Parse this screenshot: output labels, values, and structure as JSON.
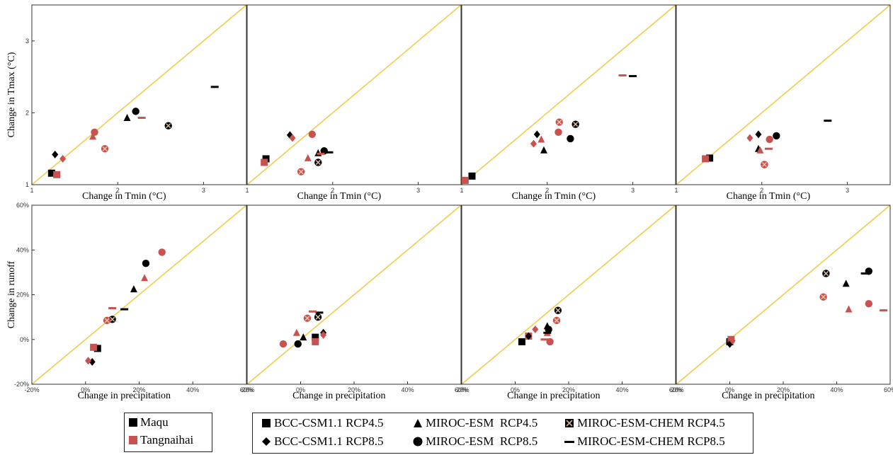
{
  "colors": {
    "maqu": "#000000",
    "tangnaihai": "#c8524f",
    "diagonal": "#f0d060",
    "axis": "#333333"
  },
  "chart_data": [
    {
      "type": "scatter",
      "panel": 1,
      "xlabel": "Change in Tmin (°C)",
      "ylabel": "Change in Tmax (°C)",
      "xlim": [
        1,
        3.5
      ],
      "ylim": [
        1,
        3.5
      ],
      "xticks": [
        "1",
        "2",
        "3"
      ],
      "yticks": [
        "1",
        "2",
        "3"
      ],
      "points": [
        {
          "site": "Maqu",
          "model": "BCC-CSM1.1 RCP4.5",
          "x": 1.23,
          "y": 1.16
        },
        {
          "site": "Tangnaihai",
          "model": "BCC-CSM1.1 RCP4.5",
          "x": 1.29,
          "y": 1.14
        },
        {
          "site": "Maqu",
          "model": "BCC-CSM1.1 RCP8.5",
          "x": 1.27,
          "y": 1.42
        },
        {
          "site": "Tangnaihai",
          "model": "BCC-CSM1.1 RCP8.5",
          "x": 1.36,
          "y": 1.36
        },
        {
          "site": "Maqu",
          "model": "MIROC-ESM RCP4.5",
          "x": 2.11,
          "y": 1.93
        },
        {
          "site": "Tangnaihai",
          "model": "MIROC-ESM RCP4.5",
          "x": 1.71,
          "y": 1.67
        },
        {
          "site": "Maqu",
          "model": "MIROC-ESM RCP8.5",
          "x": 2.21,
          "y": 2.02
        },
        {
          "site": "Tangnaihai",
          "model": "MIROC-ESM RCP8.5",
          "x": 1.73,
          "y": 1.73
        },
        {
          "site": "Maqu",
          "model": "MIROC-ESM-CHEM RCP4.5",
          "x": 2.59,
          "y": 1.82
        },
        {
          "site": "Tangnaihai",
          "model": "MIROC-ESM-CHEM RCP4.5",
          "x": 1.85,
          "y": 1.5
        },
        {
          "site": "Maqu",
          "model": "MIROC-ESM-CHEM RCP8.5",
          "x": 3.13,
          "y": 2.36
        },
        {
          "site": "Tangnaihai",
          "model": "MIROC-ESM-CHEM RCP8.5",
          "x": 2.28,
          "y": 1.93
        }
      ]
    },
    {
      "type": "scatter",
      "panel": 2,
      "xlabel": "Change in Tmin (°C)",
      "ylabel": "",
      "xlim": [
        1,
        3.5
      ],
      "ylim": [
        1,
        3.5
      ],
      "xticks": [
        "1",
        "2",
        "3"
      ],
      "yticks": [],
      "points": [
        {
          "site": "Maqu",
          "model": "BCC-CSM1.1 RCP4.5",
          "x": 1.22,
          "y": 1.36
        },
        {
          "site": "Tangnaihai",
          "model": "BCC-CSM1.1 RCP4.5",
          "x": 1.2,
          "y": 1.31
        },
        {
          "site": "Maqu",
          "model": "BCC-CSM1.1 RCP8.5",
          "x": 1.5,
          "y": 1.69
        },
        {
          "site": "Tangnaihai",
          "model": "BCC-CSM1.1 RCP8.5",
          "x": 1.53,
          "y": 1.65
        },
        {
          "site": "Maqu",
          "model": "MIROC-ESM RCP4.5",
          "x": 1.83,
          "y": 1.44
        },
        {
          "site": "Tangnaihai",
          "model": "MIROC-ESM RCP4.5",
          "x": 1.71,
          "y": 1.37
        },
        {
          "site": "Maqu",
          "model": "MIROC-ESM RCP8.5",
          "x": 1.9,
          "y": 1.47
        },
        {
          "site": "Tangnaihai",
          "model": "MIROC-ESM RCP8.5",
          "x": 1.76,
          "y": 1.7
        },
        {
          "site": "Maqu",
          "model": "MIROC-ESM-CHEM RCP4.5",
          "x": 1.83,
          "y": 1.31
        },
        {
          "site": "Tangnaihai",
          "model": "MIROC-ESM-CHEM RCP4.5",
          "x": 1.63,
          "y": 1.18
        },
        {
          "site": "Maqu",
          "model": "MIROC-ESM-CHEM RCP8.5",
          "x": 1.96,
          "y": 1.45
        },
        {
          "site": "Tangnaihai",
          "model": "MIROC-ESM-CHEM RCP8.5",
          "x": 1.86,
          "y": 1.43
        }
      ]
    },
    {
      "type": "scatter",
      "panel": 3,
      "xlabel": "Change in Tmin (°C)",
      "ylabel": "",
      "xlim": [
        1,
        3.5
      ],
      "ylim": [
        1,
        3.5
      ],
      "xticks": [
        "1",
        "2",
        "3"
      ],
      "yticks": [],
      "points": [
        {
          "site": "Maqu",
          "model": "BCC-CSM1.1 RCP4.5",
          "x": 1.12,
          "y": 1.12
        },
        {
          "site": "Tangnaihai",
          "model": "BCC-CSM1.1 RCP4.5",
          "x": 1.04,
          "y": 1.06
        },
        {
          "site": "Maqu",
          "model": "BCC-CSM1.1 RCP8.5",
          "x": 1.88,
          "y": 1.7
        },
        {
          "site": "Tangnaihai",
          "model": "BCC-CSM1.1 RCP8.5",
          "x": 1.84,
          "y": 1.57
        },
        {
          "site": "Maqu",
          "model": "MIROC-ESM RCP4.5",
          "x": 1.96,
          "y": 1.48
        },
        {
          "site": "Tangnaihai",
          "model": "MIROC-ESM RCP4.5",
          "x": 1.93,
          "y": 1.63
        },
        {
          "site": "Maqu",
          "model": "MIROC-ESM RCP8.5",
          "x": 2.27,
          "y": 1.64
        },
        {
          "site": "Tangnaihai",
          "model": "MIROC-ESM RCP8.5",
          "x": 2.13,
          "y": 1.73
        },
        {
          "site": "Maqu",
          "model": "MIROC-ESM-CHEM RCP4.5",
          "x": 2.33,
          "y": 1.84
        },
        {
          "site": "Tangnaihai",
          "model": "MIROC-ESM-CHEM RCP4.5",
          "x": 2.14,
          "y": 1.87
        },
        {
          "site": "Maqu",
          "model": "MIROC-ESM-CHEM RCP8.5",
          "x": 3,
          "y": 2.51
        },
        {
          "site": "Tangnaihai",
          "model": "MIROC-ESM-CHEM RCP8.5",
          "x": 2.88,
          "y": 2.52
        }
      ]
    },
    {
      "type": "scatter",
      "panel": 4,
      "xlabel": "Change in Tmin (°C)",
      "ylabel": "",
      "xlim": [
        1,
        3.5
      ],
      "ylim": [
        1,
        3.5
      ],
      "xticks": [
        "1",
        "2",
        "3"
      ],
      "yticks": [],
      "points": [
        {
          "site": "Maqu",
          "model": "BCC-CSM1.1 RCP4.5",
          "x": 1.39,
          "y": 1.37
        },
        {
          "site": "Tangnaihai",
          "model": "BCC-CSM1.1 RCP4.5",
          "x": 1.34,
          "y": 1.36
        },
        {
          "site": "Maqu",
          "model": "BCC-CSM1.1 RCP8.5",
          "x": 1.96,
          "y": 1.7
        },
        {
          "site": "Tangnaihai",
          "model": "BCC-CSM1.1 RCP8.5",
          "x": 1.86,
          "y": 1.65
        },
        {
          "site": "Maqu",
          "model": "MIROC-ESM RCP4.5",
          "x": 1.96,
          "y": 1.5
        },
        {
          "site": "Tangnaihai",
          "model": "MIROC-ESM RCP4.5",
          "x": 1.98,
          "y": 1.48
        },
        {
          "site": "Maqu",
          "model": "MIROC-ESM RCP8.5",
          "x": 2.17,
          "y": 1.68
        },
        {
          "site": "Tangnaihai",
          "model": "MIROC-ESM RCP8.5",
          "x": 2.09,
          "y": 1.63
        },
        {
          "site": "Maqu",
          "model": "MIROC-ESM-CHEM RCP4.5",
          "x": 2.03,
          "y": 1.28
        },
        {
          "site": "Tangnaihai",
          "model": "MIROC-ESM-CHEM RCP4.5",
          "x": 2.03,
          "y": 1.28
        },
        {
          "site": "Maqu",
          "model": "MIROC-ESM-CHEM RCP8.5",
          "x": 2.77,
          "y": 1.89
        },
        {
          "site": "Tangnaihai",
          "model": "MIROC-ESM-CHEM RCP8.5",
          "x": 2.08,
          "y": 1.5
        }
      ]
    },
    {
      "type": "scatter",
      "panel": 5,
      "xlabel": "Change in precipitation",
      "ylabel": "Change in runoff",
      "xlim": [
        -20,
        60
      ],
      "ylim": [
        -20,
        60
      ],
      "xticks": [
        "-20%",
        "0%",
        "20%",
        "40%",
        "60%"
      ],
      "yticks": [
        "-20%",
        "0%",
        "20%",
        "40%",
        "60%"
      ],
      "points": [
        {
          "site": "Maqu",
          "model": "BCC-CSM1.1 RCP4.5",
          "x": 4.5,
          "y": -4
        },
        {
          "site": "Tangnaihai",
          "model": "BCC-CSM1.1 RCP4.5",
          "x": 3,
          "y": -3.5
        },
        {
          "site": "Maqu",
          "model": "BCC-CSM1.1 RCP8.5",
          "x": 2.5,
          "y": -10
        },
        {
          "site": "Tangnaihai",
          "model": "BCC-CSM1.1 RCP8.5",
          "x": 1,
          "y": -9.5
        },
        {
          "site": "Maqu",
          "model": "MIROC-ESM RCP4.5",
          "x": 18,
          "y": 22.5
        },
        {
          "site": "Tangnaihai",
          "model": "MIROC-ESM RCP4.5",
          "x": 22,
          "y": 27.5
        },
        {
          "site": "Maqu",
          "model": "MIROC-ESM RCP8.5",
          "x": 22.5,
          "y": 34
        },
        {
          "site": "Tangnaihai",
          "model": "MIROC-ESM RCP8.5",
          "x": 28.5,
          "y": 39
        },
        {
          "site": "Maqu",
          "model": "MIROC-ESM-CHEM RCP4.5",
          "x": 10,
          "y": 9
        },
        {
          "site": "Tangnaihai",
          "model": "MIROC-ESM-CHEM RCP4.5",
          "x": 8,
          "y": 8.5
        },
        {
          "site": "Maqu",
          "model": "MIROC-ESM-CHEM RCP8.5",
          "x": 14.5,
          "y": 13.5
        },
        {
          "site": "Tangnaihai",
          "model": "MIROC-ESM-CHEM RCP8.5",
          "x": 10,
          "y": 14
        }
      ]
    },
    {
      "type": "scatter",
      "panel": 6,
      "xlabel": "Change in precipitation",
      "ylabel": "",
      "xlim": [
        -20,
        60
      ],
      "ylim": [
        -20,
        60
      ],
      "xticks": [
        "-20%",
        "0%",
        "20%",
        "40%",
        "60%"
      ],
      "yticks": [],
      "points": [
        {
          "site": "Maqu",
          "model": "BCC-CSM1.1 RCP4.5",
          "x": 5.5,
          "y": 1
        },
        {
          "site": "Tangnaihai",
          "model": "BCC-CSM1.1 RCP4.5",
          "x": 5.5,
          "y": -1
        },
        {
          "site": "Maqu",
          "model": "BCC-CSM1.1 RCP8.5",
          "x": 8.5,
          "y": 3
        },
        {
          "site": "Tangnaihai",
          "model": "BCC-CSM1.1 RCP8.5",
          "x": 8.5,
          "y": 2
        },
        {
          "site": "Maqu",
          "model": "MIROC-ESM RCP4.5",
          "x": 1,
          "y": 1
        },
        {
          "site": "Tangnaihai",
          "model": "MIROC-ESM RCP4.5",
          "x": -1.5,
          "y": 3
        },
        {
          "site": "Maqu",
          "model": "MIROC-ESM RCP8.5",
          "x": -1,
          "y": -2
        },
        {
          "site": "Tangnaihai",
          "model": "MIROC-ESM RCP8.5",
          "x": -6.5,
          "y": -2
        },
        {
          "site": "Maqu",
          "model": "MIROC-ESM-CHEM RCP4.5",
          "x": 6.5,
          "y": 10
        },
        {
          "site": "Tangnaihai",
          "model": "MIROC-ESM-CHEM RCP4.5",
          "x": 2.5,
          "y": 9.5
        },
        {
          "site": "Maqu",
          "model": "MIROC-ESM-CHEM RCP8.5",
          "x": 7,
          "y": 12
        },
        {
          "site": "Tangnaihai",
          "model": "MIROC-ESM-CHEM RCP8.5",
          "x": 4.5,
          "y": 12.5
        }
      ]
    },
    {
      "type": "scatter",
      "panel": 7,
      "xlabel": "Change in precipitation",
      "ylabel": "",
      "xlim": [
        -20,
        60
      ],
      "ylim": [
        -20,
        60
      ],
      "xticks": [
        "-20%",
        "0%",
        "20%",
        "40%",
        "60%"
      ],
      "yticks": [],
      "points": [
        {
          "site": "Maqu",
          "model": "BCC-CSM1.1 RCP4.5",
          "x": 2.5,
          "y": -1
        },
        {
          "site": "Tangnaihai",
          "model": "BCC-CSM1.1 RCP4.5",
          "x": 5,
          "y": 1.5
        },
        {
          "site": "Maqu",
          "model": "BCC-CSM1.1 RCP8.5",
          "x": 5,
          "y": 1.5
        },
        {
          "site": "Tangnaihai",
          "model": "BCC-CSM1.1 RCP8.5",
          "x": 7.5,
          "y": 4.5
        },
        {
          "site": "Maqu",
          "model": "MIROC-ESM RCP4.5",
          "x": 12,
          "y": 6
        },
        {
          "site": "Tangnaihai",
          "model": "MIROC-ESM RCP4.5",
          "x": 12,
          "y": 3
        },
        {
          "site": "Maqu",
          "model": "MIROC-ESM RCP8.5",
          "x": 12.5,
          "y": 4.5
        },
        {
          "site": "Tangnaihai",
          "model": "MIROC-ESM RCP8.5",
          "x": 13,
          "y": -1
        },
        {
          "site": "Maqu",
          "model": "MIROC-ESM-CHEM RCP4.5",
          "x": 16,
          "y": 13
        },
        {
          "site": "Tangnaihai",
          "model": "MIROC-ESM-CHEM RCP4.5",
          "x": 15.5,
          "y": 8.5
        },
        {
          "site": "Maqu",
          "model": "MIROC-ESM-CHEM RCP8.5",
          "x": 12,
          "y": 3
        },
        {
          "site": "Tangnaihai",
          "model": "MIROC-ESM-CHEM RCP8.5",
          "x": 11,
          "y": 0
        }
      ]
    },
    {
      "type": "scatter",
      "panel": 8,
      "xlabel": "Change in precipitation",
      "ylabel": "",
      "xlim": [
        -20,
        60
      ],
      "ylim": [
        -20,
        60
      ],
      "xticks": [
        "-20%",
        "0%",
        "20%",
        "40%",
        "60%"
      ],
      "yticks": [],
      "points": [
        {
          "site": "Maqu",
          "model": "BCC-CSM1.1 RCP4.5",
          "x": 0,
          "y": -1
        },
        {
          "site": "Tangnaihai",
          "model": "BCC-CSM1.1 RCP4.5",
          "x": 0.5,
          "y": 0
        },
        {
          "site": "Maqu",
          "model": "BCC-CSM1.1 RCP8.5",
          "x": 0,
          "y": -2
        },
        {
          "site": "Tangnaihai",
          "model": "BCC-CSM1.1 RCP8.5",
          "x": 1,
          "y": -0.5
        },
        {
          "site": "Maqu",
          "model": "MIROC-ESM RCP4.5",
          "x": 43.5,
          "y": 25
        },
        {
          "site": "Tangnaihai",
          "model": "MIROC-ESM RCP4.5",
          "x": 44.5,
          "y": 13.5
        },
        {
          "site": "Maqu",
          "model": "MIROC-ESM RCP8.5",
          "x": 52,
          "y": 30.5
        },
        {
          "site": "Tangnaihai",
          "model": "MIROC-ESM RCP8.5",
          "x": 52,
          "y": 16
        },
        {
          "site": "Maqu",
          "model": "MIROC-ESM-CHEM RCP4.5",
          "x": 36,
          "y": 29.5
        },
        {
          "site": "Tangnaihai",
          "model": "MIROC-ESM-CHEM RCP4.5",
          "x": 35,
          "y": 19
        },
        {
          "site": "Maqu",
          "model": "MIROC-ESM-CHEM RCP8.5",
          "x": 50.5,
          "y": 29.5
        },
        {
          "site": "Tangnaihai",
          "model": "MIROC-ESM-CHEM RCP8.5",
          "x": 57.5,
          "y": 13
        }
      ]
    }
  ],
  "legend_sites": [
    {
      "label": "Maqu",
      "color": "#000000"
    },
    {
      "label": "Tangnaihai",
      "color": "#c8524f"
    }
  ],
  "legend_models": [
    {
      "label": "BCC-CSM1.1 RCP4.5",
      "marker": "square"
    },
    {
      "label": "MIROC-ESM  RCP4.5",
      "marker": "triangle"
    },
    {
      "label": "MIROC-ESM-CHEM RCP4.5",
      "marker": "xsquare"
    },
    {
      "label": "BCC-CSM1.1 RCP8.5",
      "marker": "diamond"
    },
    {
      "label": "MIROC-ESM  RCP8.5",
      "marker": "circle"
    },
    {
      "label": "MIROC-ESM-CHEM RCP8.5",
      "marker": "dash"
    }
  ],
  "model_markers": {
    "BCC-CSM1.1 RCP4.5": "square",
    "BCC-CSM1.1 RCP8.5": "diamond",
    "MIROC-ESM RCP4.5": "triangle",
    "MIROC-ESM RCP8.5": "circle",
    "MIROC-ESM-CHEM RCP4.5": "xsquare",
    "MIROC-ESM-CHEM RCP8.5": "dash"
  }
}
